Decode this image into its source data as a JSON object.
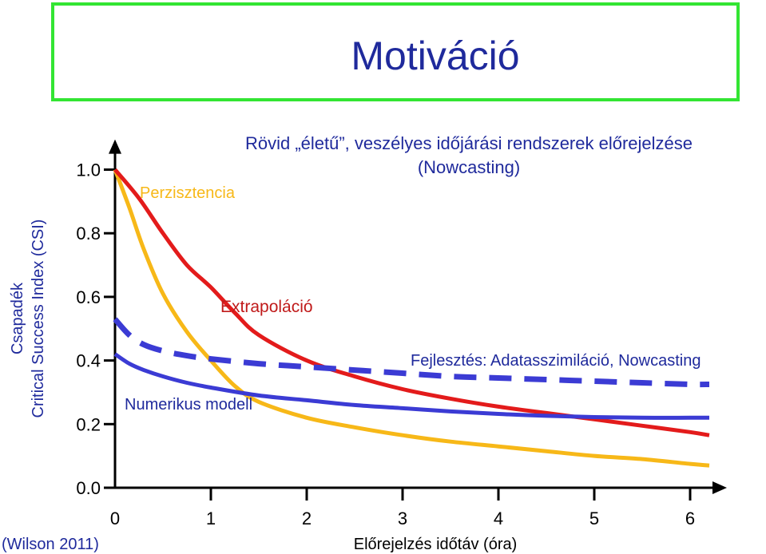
{
  "slide": {
    "title": "Motiváció",
    "subtitle_line1": "Rövid „életű”, veszélyes időjárási rendszerek előrejelzése",
    "subtitle_line2": "(Nowcasting)",
    "citation": "(Wilson 2011)"
  },
  "chart_data": {
    "type": "line",
    "xlabel": "Előrejelzés időtáv (óra)",
    "ylabel_line1": "Csapadék",
    "ylabel_line2": "Critical Success Index (CSI)",
    "xlim": [
      0,
      6.3
    ],
    "ylim": [
      0,
      1.05
    ],
    "x_ticks": [
      "0",
      "1",
      "2",
      "3",
      "4",
      "5",
      "6"
    ],
    "y_ticks": [
      "0.0",
      "0.2",
      "0.4",
      "0.6",
      "0.8",
      "1.0"
    ],
    "grid": false,
    "annotations": {
      "perzisztencia": "Perzisztencia",
      "extrapolacio": "Extrapoláció",
      "numerikus": "Numerikus modell",
      "fejlesztes": "Fejlesztés: Adatasszimiláció, Nowcasting"
    },
    "colors": {
      "perzisztencia": "#f7b818",
      "extrapolacio": "#e31b1b",
      "numerikus": "#3b3bd4",
      "fejlesztes": "#3b3bd4",
      "axis": "#000000"
    },
    "series": [
      {
        "key": "perzisztencia",
        "style": "solid",
        "x": [
          0,
          0.15,
          0.3,
          0.5,
          0.75,
          1.0,
          1.25,
          1.5,
          2.0,
          2.5,
          3.0,
          3.5,
          4.0,
          4.5,
          5.0,
          5.5,
          6.0,
          6.2
        ],
        "y": [
          1.0,
          0.88,
          0.75,
          0.61,
          0.49,
          0.4,
          0.32,
          0.27,
          0.22,
          0.19,
          0.165,
          0.145,
          0.13,
          0.115,
          0.1,
          0.09,
          0.075,
          0.07
        ]
      },
      {
        "key": "extrapolacio",
        "style": "solid",
        "x": [
          0,
          0.25,
          0.5,
          0.75,
          1.0,
          1.25,
          1.5,
          2.0,
          2.5,
          3.0,
          3.5,
          4.0,
          4.5,
          5.0,
          5.5,
          6.0,
          6.2
        ],
        "y": [
          1.0,
          0.91,
          0.8,
          0.7,
          0.63,
          0.55,
          0.48,
          0.4,
          0.35,
          0.31,
          0.28,
          0.255,
          0.235,
          0.215,
          0.195,
          0.175,
          0.165
        ]
      },
      {
        "key": "numerikus",
        "style": "solid",
        "x": [
          0,
          0.15,
          0.3,
          0.5,
          0.75,
          1.0,
          1.5,
          2.0,
          2.5,
          3.0,
          3.5,
          4.0,
          4.5,
          5.0,
          5.5,
          6.0,
          6.2
        ],
        "y": [
          0.42,
          0.39,
          0.37,
          0.35,
          0.33,
          0.315,
          0.29,
          0.275,
          0.26,
          0.25,
          0.24,
          0.232,
          0.226,
          0.222,
          0.22,
          0.22,
          0.22
        ]
      },
      {
        "key": "fejlesztes",
        "style": "dashed",
        "x": [
          0,
          0.15,
          0.3,
          0.5,
          0.75,
          1.0,
          1.5,
          2.0,
          2.5,
          3.0,
          3.5,
          4.0,
          4.5,
          5.0,
          5.5,
          6.0,
          6.2
        ],
        "y": [
          0.53,
          0.48,
          0.45,
          0.43,
          0.415,
          0.405,
          0.39,
          0.38,
          0.37,
          0.36,
          0.35,
          0.345,
          0.34,
          0.335,
          0.33,
          0.325,
          0.325
        ]
      }
    ]
  }
}
